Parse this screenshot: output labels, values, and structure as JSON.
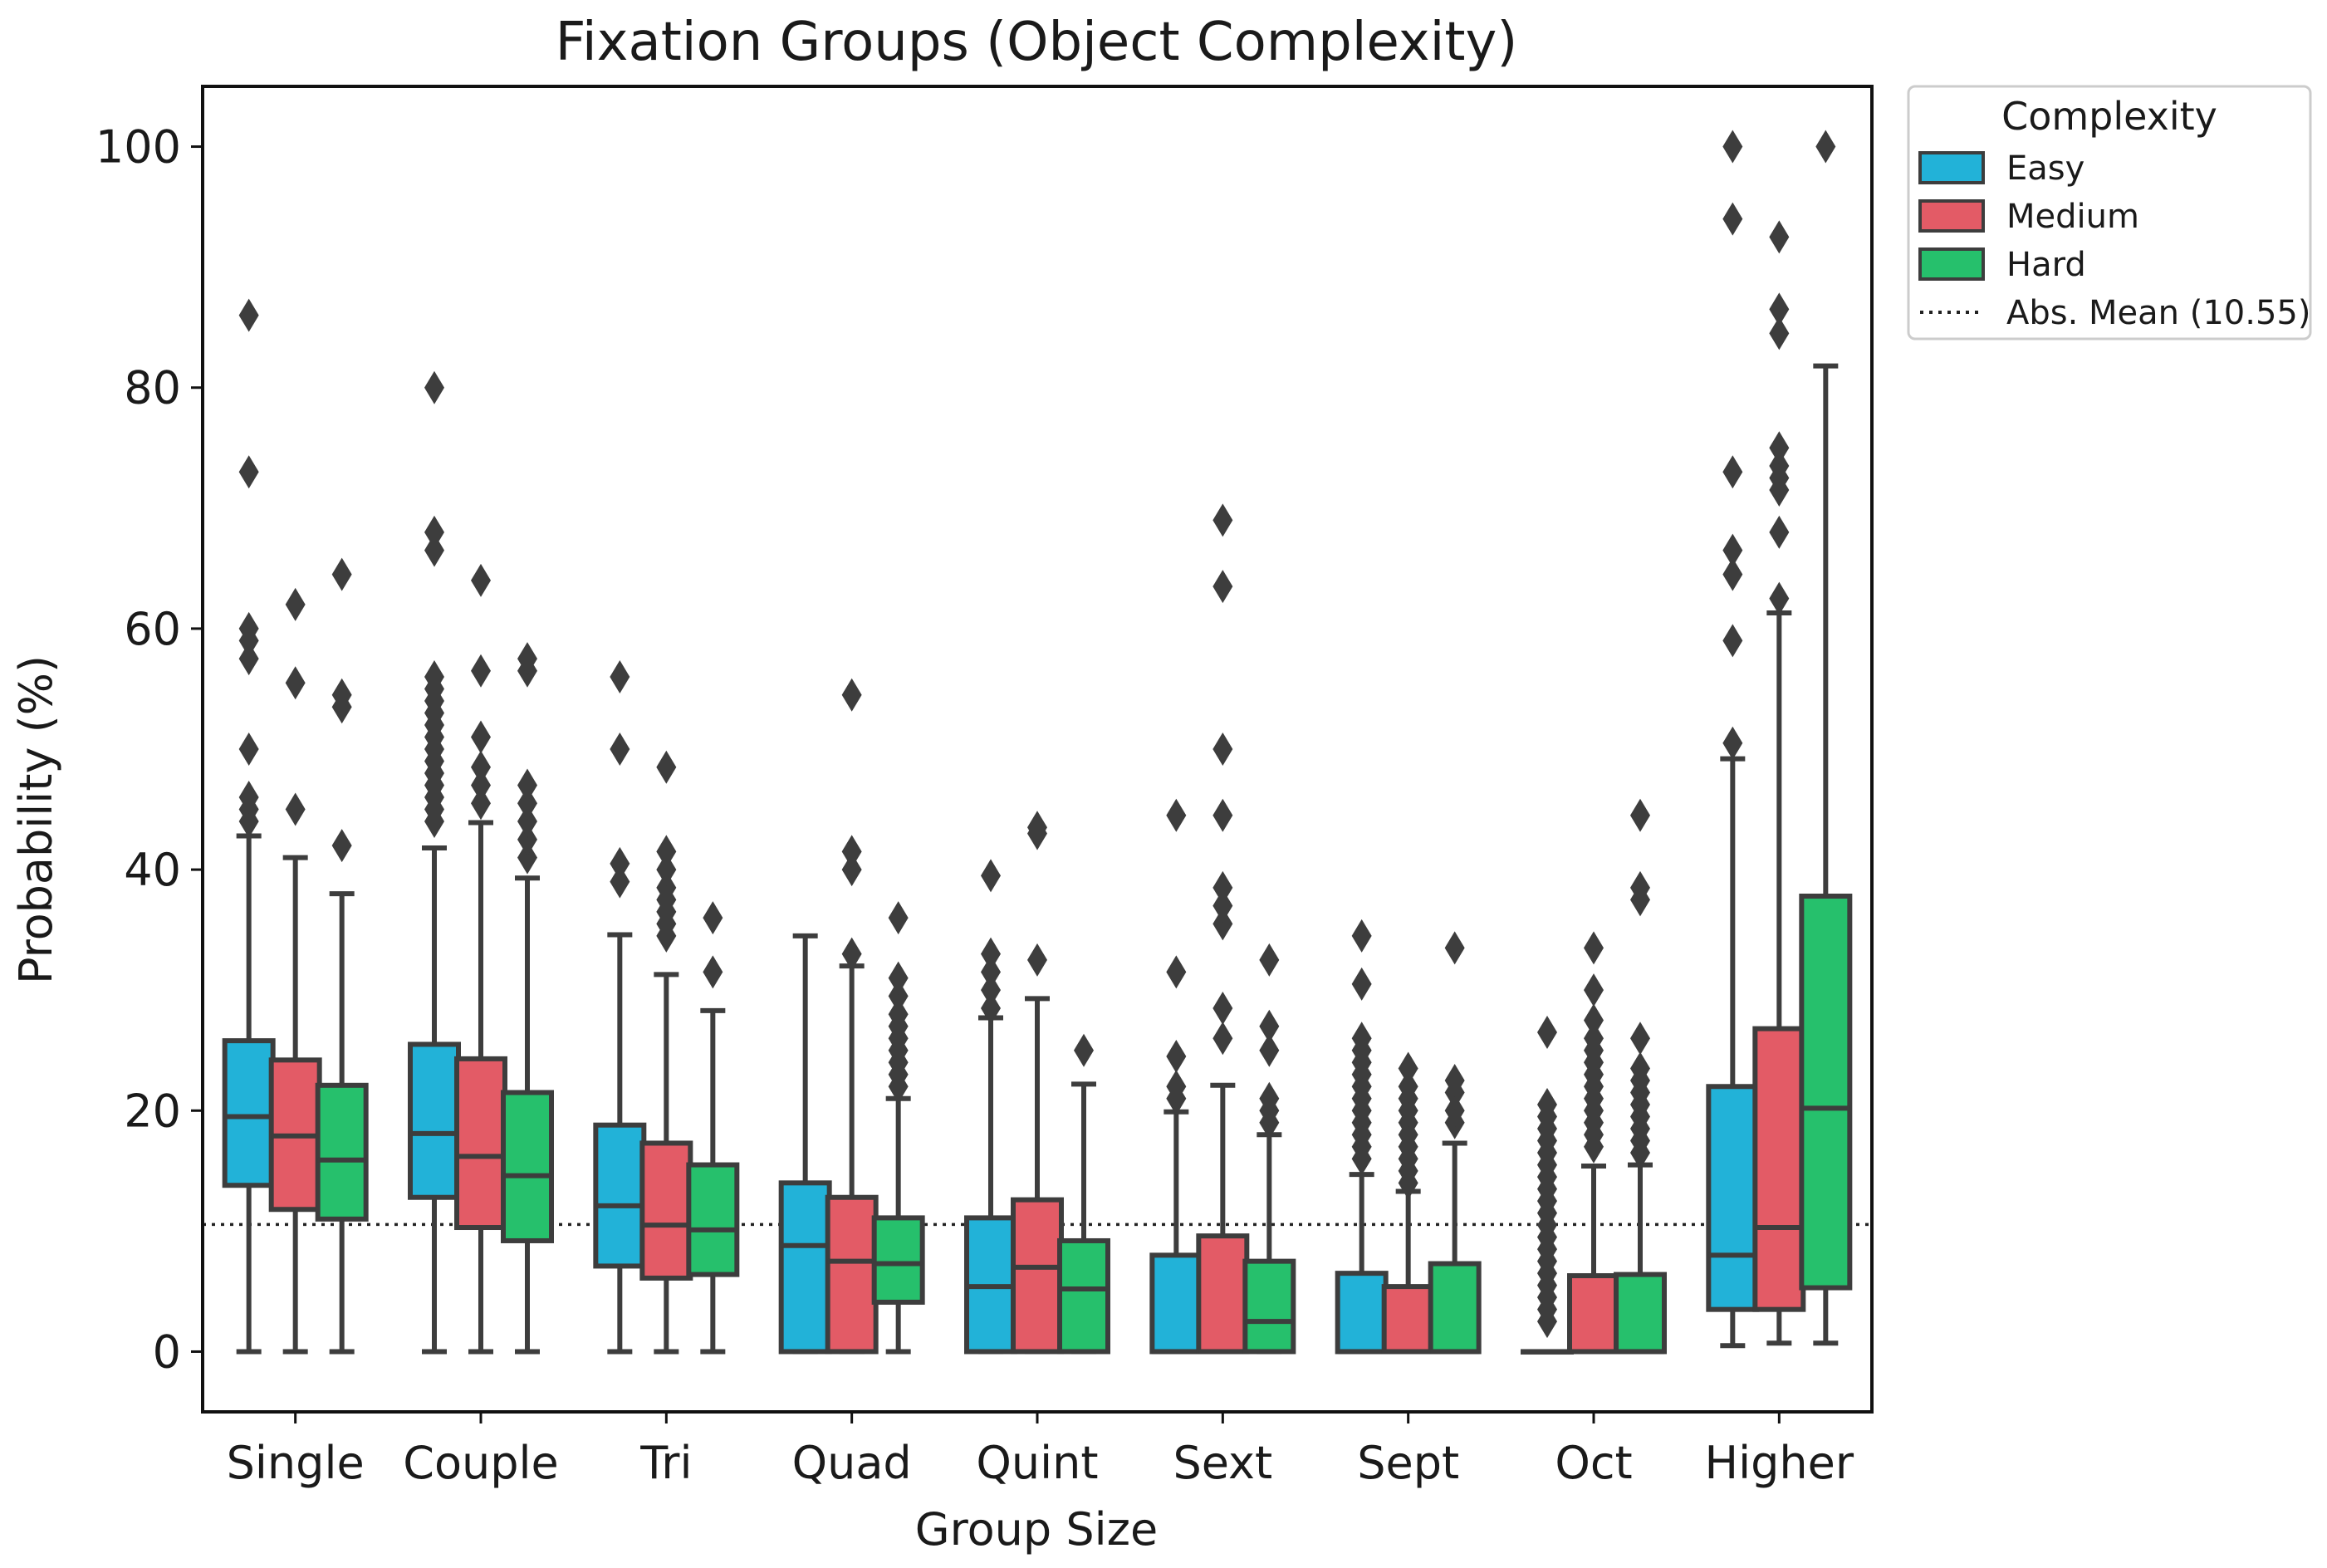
{
  "chart_data": {
    "type": "box",
    "title": "Fixation Groups (Object Complexity)",
    "xlabel": "Group Size",
    "ylabel": "Probability (%)",
    "ylim": [
      -5,
      105
    ],
    "yticks": [
      0,
      20,
      40,
      60,
      80,
      100
    ],
    "grid": false,
    "legend": {
      "title": "Complexity",
      "position": "outside-top-right",
      "entries": [
        "Easy",
        "Medium",
        "Hard"
      ],
      "reference_label": "Abs. Mean (10.55)"
    },
    "reference_line": {
      "value": 10.55,
      "style": "dotted"
    },
    "categories": [
      "Single",
      "Couple",
      "Tri",
      "Quad",
      "Quint",
      "Sext",
      "Sept",
      "Oct",
      "Higher"
    ],
    "series": [
      {
        "name": "Easy",
        "color": "#22b2d8",
        "boxes": [
          {
            "whislo": 0,
            "q1": 13.8,
            "med": 19.5,
            "q3": 25.8,
            "whishi": 42.8,
            "fliers": [
              44,
              45,
              46,
              50,
              57.5,
              59,
              60,
              73,
              86
            ]
          },
          {
            "whislo": 0,
            "q1": 12.8,
            "med": 18.1,
            "q3": 25.5,
            "whishi": 41.8,
            "fliers": [
              44,
              45,
              46,
              47,
              48,
              49,
              50,
              51,
              52,
              53,
              54,
              55,
              56,
              66.5,
              68,
              80
            ]
          },
          {
            "whislo": 0,
            "q1": 7.1,
            "med": 12.1,
            "q3": 18.8,
            "whishi": 34.6,
            "fliers": [
              39,
              40.5,
              50,
              56
            ]
          },
          {
            "whislo": 0,
            "q1": 0,
            "med": 8.8,
            "q3": 14.0,
            "whishi": 34.5,
            "fliers": []
          },
          {
            "whislo": 0,
            "q1": 0,
            "med": 5.4,
            "q3": 11.1,
            "whishi": 27.7,
            "fliers": [
              28.5,
              30,
              31.5,
              33,
              39.5
            ]
          },
          {
            "whislo": 0,
            "q1": 0,
            "med": 0,
            "q3": 8.0,
            "whishi": 19.9,
            "fliers": [
              21,
              22,
              24.5,
              31.5,
              44.5
            ]
          },
          {
            "whislo": 0,
            "q1": 0,
            "med": 0,
            "q3": 6.5,
            "whishi": 14.7,
            "fliers": [
              16,
              17,
              18,
              19,
              20,
              21,
              22,
              23,
              24,
              25,
              26,
              30.5,
              34.5
            ]
          },
          {
            "whislo": 0,
            "q1": 0,
            "med": 0,
            "q3": 0,
            "whishi": 0,
            "fliers": [
              2.5,
              3.5,
              4.5,
              5.5,
              6.5,
              7.5,
              8.5,
              9.5,
              10.5,
              11.5,
              12.5,
              13.5,
              14.5,
              15.5,
              16.5,
              17.5,
              18.5,
              19.5,
              20.5,
              26.5
            ]
          },
          {
            "whislo": 0.5,
            "q1": 3.5,
            "med": 8.0,
            "q3": 22.0,
            "whishi": 49.2,
            "fliers": [
              50.5,
              59,
              64.5,
              66.5,
              73,
              94,
              100
            ]
          }
        ]
      },
      {
        "name": "Medium",
        "color": "#e35b66",
        "boxes": [
          {
            "whislo": 0,
            "q1": 11.8,
            "med": 17.9,
            "q3": 24.2,
            "whishi": 41.0,
            "fliers": [
              45,
              55.5,
              62
            ]
          },
          {
            "whislo": 0,
            "q1": 10.3,
            "med": 16.2,
            "q3": 24.3,
            "whishi": 43.9,
            "fliers": [
              45.5,
              47,
              48.5,
              51,
              56.5,
              64
            ]
          },
          {
            "whislo": 0,
            "q1": 6.1,
            "med": 10.5,
            "q3": 17.3,
            "whishi": 31.3,
            "fliers": [
              34.5,
              35.5,
              36.5,
              37.5,
              38.5,
              40,
              41.5,
              48.5
            ]
          },
          {
            "whislo": 0,
            "q1": 0,
            "med": 7.5,
            "q3": 12.8,
            "whishi": 32.0,
            "fliers": [
              33,
              40,
              41.5,
              54.5
            ]
          },
          {
            "whislo": 0,
            "q1": 0,
            "med": 7.0,
            "q3": 12.6,
            "whishi": 29.3,
            "fliers": [
              32.5,
              43,
              43.5
            ]
          },
          {
            "whislo": 0,
            "q1": 0,
            "med": 0,
            "q3": 9.6,
            "whishi": 22.1,
            "fliers": [
              26,
              28.5,
              35.5,
              37,
              38.5,
              44.5,
              50,
              63.5,
              69
            ]
          },
          {
            "whislo": 0,
            "q1": 0,
            "med": 0,
            "q3": 5.4,
            "whishi": 13.3,
            "fliers": [
              14,
              15,
              16,
              17,
              18,
              19,
              20,
              21,
              22,
              23.5
            ]
          },
          {
            "whislo": 0,
            "q1": 0,
            "med": 0,
            "q3": 6.3,
            "whishi": 15.4,
            "fliers": [
              17,
              18,
              19,
              20,
              21,
              22,
              23,
              24,
              25,
              26,
              27.5,
              30,
              33.5
            ]
          },
          {
            "whislo": 0.7,
            "q1": 3.5,
            "med": 10.3,
            "q3": 26.8,
            "whishi": 61.3,
            "fliers": [
              62.5,
              68,
              71.5,
              72.5,
              73.5,
              75,
              84.5,
              86.5,
              92.5
            ]
          }
        ]
      },
      {
        "name": "Hard",
        "color": "#26c06c",
        "boxes": [
          {
            "whislo": 0,
            "q1": 11.0,
            "med": 15.9,
            "q3": 22.1,
            "whishi": 38.0,
            "fliers": [
              42,
              53.5,
              54.5,
              64.5
            ]
          },
          {
            "whislo": 0,
            "q1": 9.2,
            "med": 14.6,
            "q3": 21.5,
            "whishi": 39.3,
            "fliers": [
              41,
              42.5,
              44,
              45.5,
              47,
              56.5,
              57.5
            ]
          },
          {
            "whislo": 0,
            "q1": 6.4,
            "med": 10.1,
            "q3": 15.5,
            "whishi": 28.3,
            "fliers": [
              31.5,
              36
            ]
          },
          {
            "whislo": 0,
            "q1": 4.1,
            "med": 7.3,
            "q3": 11.1,
            "whishi": 21.0,
            "fliers": [
              22,
              23,
              24,
              25,
              26,
              27,
              28,
              29.5,
              31,
              36
            ]
          },
          {
            "whislo": 0,
            "q1": 0,
            "med": 5.2,
            "q3": 9.2,
            "whishi": 22.2,
            "fliers": [
              25
            ]
          },
          {
            "whislo": 0,
            "q1": 0,
            "med": 2.5,
            "q3": 7.5,
            "whishi": 18.0,
            "fliers": [
              19,
              20,
              21,
              25,
              27,
              32.5
            ]
          },
          {
            "whislo": 0,
            "q1": 0,
            "med": 0,
            "q3": 7.3,
            "whishi": 17.3,
            "fliers": [
              19,
              20,
              21.5,
              22.5,
              33.5
            ]
          },
          {
            "whislo": 0,
            "q1": 0,
            "med": 0,
            "q3": 6.4,
            "whishi": 15.5,
            "fliers": [
              16.5,
              17.5,
              18.5,
              19.5,
              20.5,
              21.5,
              22.5,
              23.5,
              26,
              37.5,
              38.5,
              44.5
            ]
          },
          {
            "whislo": 0.7,
            "q1": 5.3,
            "med": 20.2,
            "q3": 37.8,
            "whishi": 81.8,
            "fliers": [
              100
            ]
          }
        ]
      }
    ]
  }
}
